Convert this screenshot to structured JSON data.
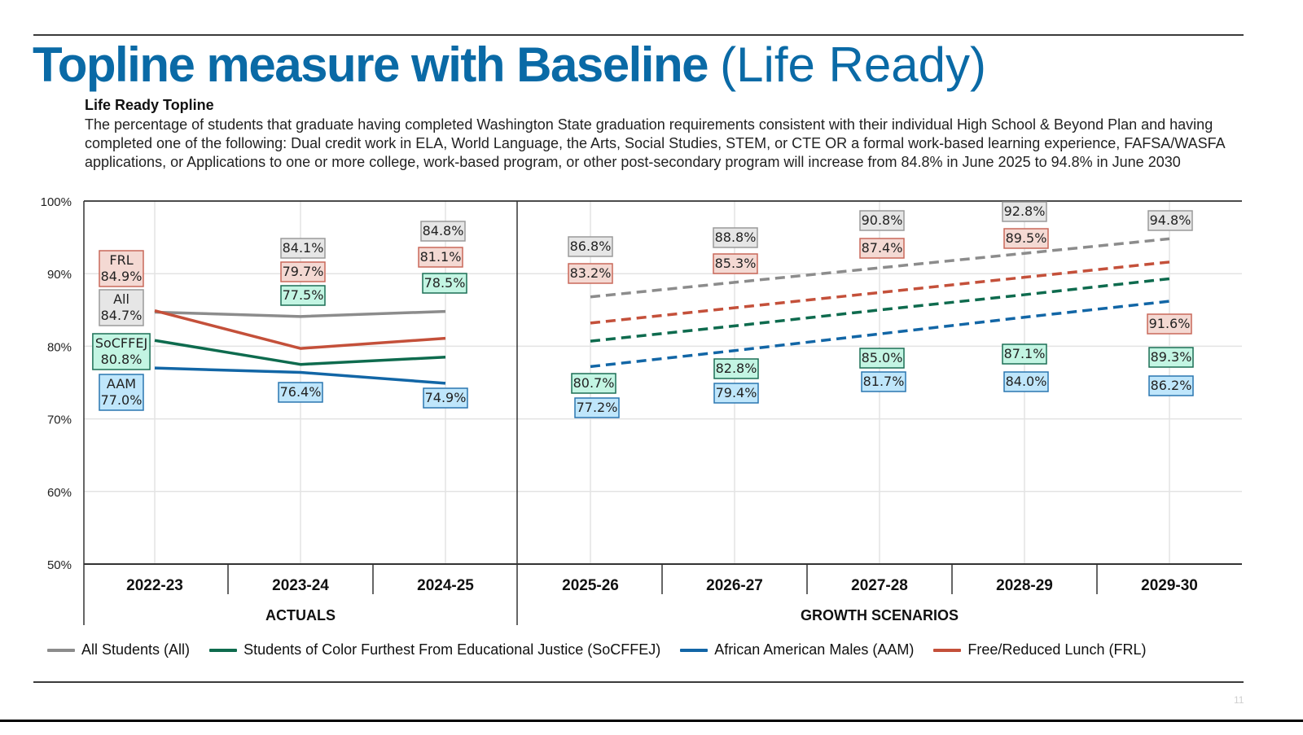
{
  "slide": {
    "title_bold": "Topline measure with Baseline",
    "title_light": "(Life Ready)",
    "subtitle": "Life Ready Topline",
    "description": "The percentage of students that graduate having completed Washington State graduation requirements consistent with their individual High School & Beyond Plan and having completed one of the following: Dual credit work in ELA, World Language, the Arts, Social Studies, STEM, or CTE OR a formal work-based learning experience, FAFSA/WASFA applications, or Applications to one or more college, work-based program, or other post-secondary program will increase from 84.8% in June 2025 to 94.8% in June 2030",
    "page_number": "11",
    "brand_color": "#0a6aa6"
  },
  "chart_data": {
    "type": "line",
    "title": "",
    "xlabel": "",
    "ylabel": "",
    "ylim": [
      50,
      100
    ],
    "yticks": [
      50,
      60,
      70,
      80,
      90,
      100
    ],
    "ytick_labels": [
      "50%",
      "60%",
      "70%",
      "80%",
      "90%",
      "100%"
    ],
    "grid": true,
    "legend_position": "bottom",
    "categories": [
      "2022-23",
      "2023-24",
      "2024-25",
      "2025-26",
      "2026-27",
      "2027-28",
      "2028-29",
      "2029-30"
    ],
    "groups": [
      {
        "label": "ACTUALS",
        "categories": [
          "2022-23",
          "2023-24",
          "2024-25"
        ],
        "line_style": "solid"
      },
      {
        "label": "GROWTH SCENARIOS",
        "categories": [
          "2025-26",
          "2026-27",
          "2027-28",
          "2028-29",
          "2029-30"
        ],
        "line_style": "dashed"
      }
    ],
    "series": [
      {
        "key": "all",
        "short": "All",
        "name": "All Students (All)",
        "color": "#8c8c8c",
        "label_fill": "#e6e6e6",
        "label_border": "#9a9a9a",
        "values": [
          84.7,
          84.1,
          84.8,
          86.8,
          88.8,
          90.8,
          92.8,
          94.8
        ]
      },
      {
        "key": "socffej",
        "short": "SoCFFEJ",
        "name": "Students of Color Furthest From Educational Justice (SoCFFEJ)",
        "color": "#0e6b4e",
        "label_fill": "#c3f5e3",
        "label_border": "#1c6f55",
        "values": [
          80.8,
          77.5,
          78.5,
          80.7,
          82.8,
          85.0,
          87.1,
          89.3
        ]
      },
      {
        "key": "aam",
        "short": "AAM",
        "name": "African American Males (AAM)",
        "color": "#1266a6",
        "label_fill": "#bfe6fb",
        "label_border": "#2a76b0",
        "values": [
          77.0,
          76.4,
          74.9,
          77.2,
          79.4,
          81.7,
          84.0,
          86.2
        ]
      },
      {
        "key": "frl",
        "short": "FRL",
        "name": "Free/Reduced Lunch (FRL)",
        "color": "#c4503a",
        "label_fill": "#f4d9d3",
        "label_border": "#c9695a",
        "values": [
          84.9,
          79.7,
          81.1,
          83.2,
          85.3,
          87.4,
          89.5,
          91.6
        ]
      }
    ],
    "data_labels": [
      {
        "series": "frl",
        "category": "2022-23",
        "text": [
          "FRL",
          "84.9%"
        ]
      },
      {
        "series": "all",
        "category": "2022-23",
        "text": [
          "All",
          "84.7%"
        ]
      },
      {
        "series": "socffej",
        "category": "2022-23",
        "text": [
          "SoCFFEJ",
          "80.8%"
        ]
      },
      {
        "series": "aam",
        "category": "2022-23",
        "text": [
          "AAM",
          "77.0%"
        ]
      },
      {
        "series": "all",
        "category": "2023-24",
        "text": [
          "84.1%"
        ]
      },
      {
        "series": "frl",
        "category": "2023-24",
        "text": [
          "79.7%"
        ]
      },
      {
        "series": "socffej",
        "category": "2023-24",
        "text": [
          "77.5%"
        ]
      },
      {
        "series": "aam",
        "category": "2023-24",
        "text": [
          "76.4%"
        ]
      },
      {
        "series": "all",
        "category": "2024-25",
        "text": [
          "84.8%"
        ]
      },
      {
        "series": "frl",
        "category": "2024-25",
        "text": [
          "81.1%"
        ]
      },
      {
        "series": "socffej",
        "category": "2024-25",
        "text": [
          "78.5%"
        ]
      },
      {
        "series": "aam",
        "category": "2024-25",
        "text": [
          "74.9%"
        ]
      },
      {
        "series": "all",
        "category": "2025-26",
        "text": [
          "86.8%"
        ]
      },
      {
        "series": "frl",
        "category": "2025-26",
        "text": [
          "83.2%"
        ]
      },
      {
        "series": "socffej",
        "category": "2025-26",
        "text": [
          "80.7%"
        ]
      },
      {
        "series": "aam",
        "category": "2025-26",
        "text": [
          "77.2%"
        ]
      },
      {
        "series": "all",
        "category": "2026-27",
        "text": [
          "88.8%"
        ]
      },
      {
        "series": "frl",
        "category": "2026-27",
        "text": [
          "85.3%"
        ]
      },
      {
        "series": "socffej",
        "category": "2026-27",
        "text": [
          "82.8%"
        ]
      },
      {
        "series": "aam",
        "category": "2026-27",
        "text": [
          "79.4%"
        ]
      },
      {
        "series": "all",
        "category": "2027-28",
        "text": [
          "90.8%"
        ]
      },
      {
        "series": "frl",
        "category": "2027-28",
        "text": [
          "87.4%"
        ]
      },
      {
        "series": "socffej",
        "category": "2027-28",
        "text": [
          "85.0%"
        ]
      },
      {
        "series": "aam",
        "category": "2027-28",
        "text": [
          "81.7%"
        ]
      },
      {
        "series": "all",
        "category": "2028-29",
        "text": [
          "92.8%"
        ]
      },
      {
        "series": "frl",
        "category": "2028-29",
        "text": [
          "89.5%"
        ]
      },
      {
        "series": "socffej",
        "category": "2028-29",
        "text": [
          "87.1%"
        ]
      },
      {
        "series": "aam",
        "category": "2028-29",
        "text": [
          "84.0%"
        ]
      },
      {
        "series": "all",
        "category": "2029-30",
        "text": [
          "94.8%"
        ]
      },
      {
        "series": "frl",
        "category": "2029-30",
        "text": [
          "91.6%"
        ]
      },
      {
        "series": "socffej",
        "category": "2029-30",
        "text": [
          "89.3%"
        ]
      },
      {
        "series": "aam",
        "category": "2029-30",
        "text": [
          "86.2%"
        ]
      }
    ]
  }
}
